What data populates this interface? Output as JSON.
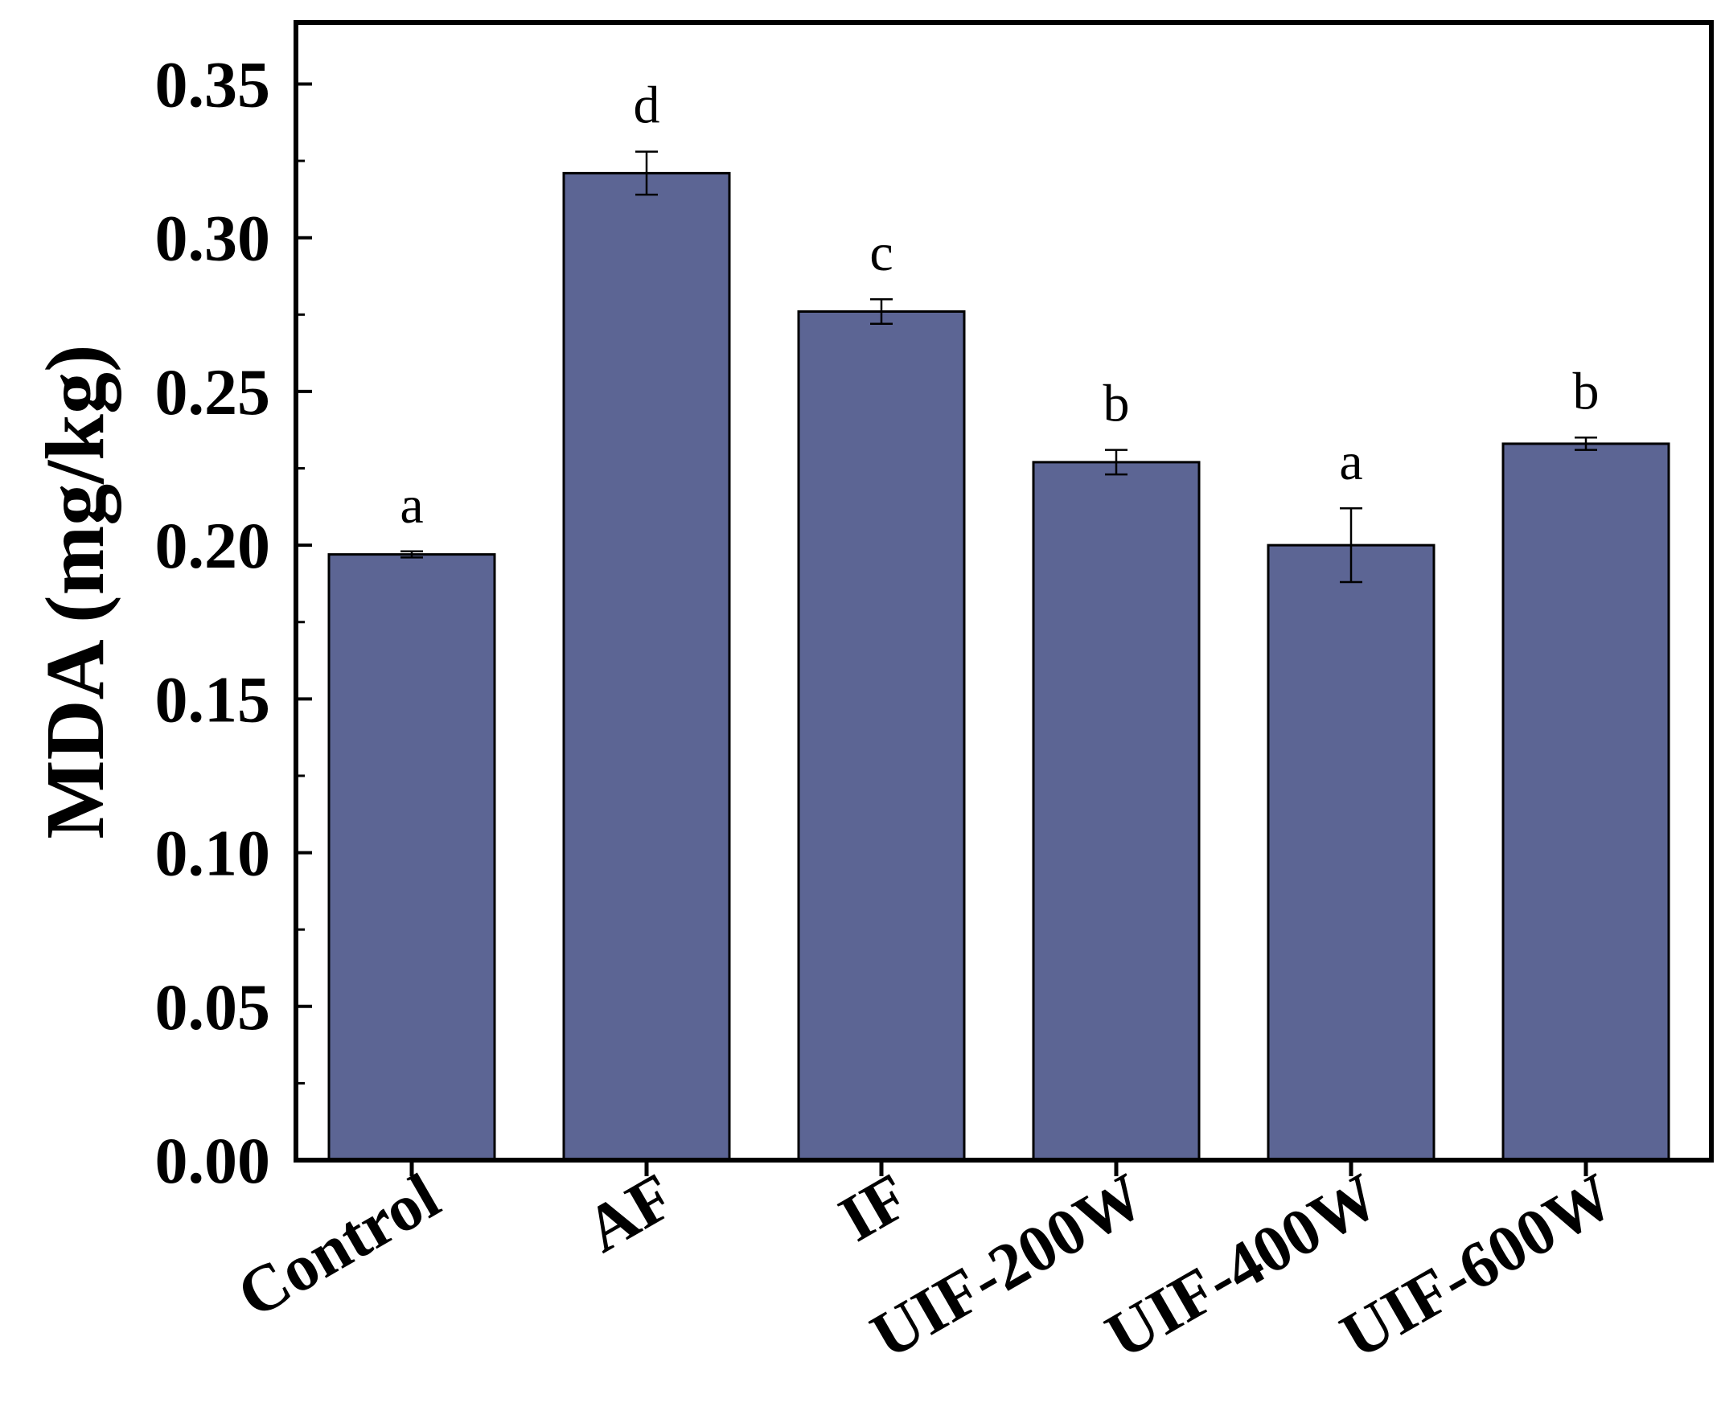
{
  "chart_data": {
    "type": "bar",
    "categories": [
      "Control",
      "AF",
      "IF",
      "UIF-200W",
      "UIF-400W",
      "UIF-600W"
    ],
    "values": [
      0.197,
      0.321,
      0.276,
      0.227,
      0.2,
      0.233
    ],
    "errors": [
      0.001,
      0.007,
      0.004,
      0.004,
      0.012,
      0.002
    ],
    "significance": [
      "a",
      "d",
      "c",
      "b",
      "a",
      "b"
    ],
    "ylabel": "MDA (mg/kg)",
    "xlabel": "",
    "title": "",
    "ylim": [
      0,
      0.37
    ],
    "yticks": [
      "0.00",
      "0.05",
      "0.10",
      "0.15",
      "0.20",
      "0.25",
      "0.30",
      "0.35"
    ],
    "bar_color": "#5c6594",
    "grid": false,
    "legend": "none"
  }
}
